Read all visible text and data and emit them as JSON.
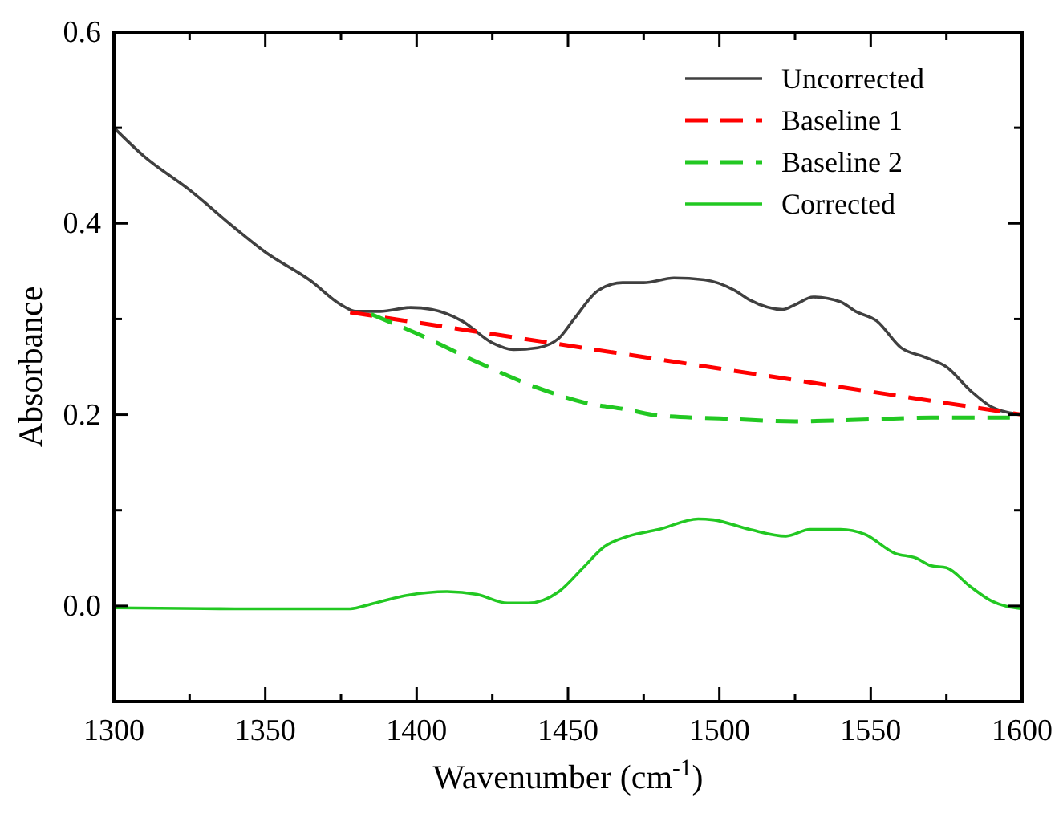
{
  "chart_data": {
    "type": "line",
    "xlabel": "Wavenumber (cm$^{-1}$)",
    "ylabel": "Absorbance",
    "xlim": [
      1300,
      1600
    ],
    "xticks": [
      1300,
      {
        "value": 1325,
        "label": null
      },
      1350,
      {
        "value": 1375,
        "label": null
      },
      1400,
      {
        "value": 1425,
        "label": null
      },
      1450,
      {
        "value": 1475,
        "label": null
      },
      1500,
      {
        "value": 1525,
        "label": null
      },
      1550,
      {
        "value": 1575,
        "label": null
      },
      1600
    ],
    "ylim": [
      -0.1,
      0.6
    ],
    "yticks": [
      {
        "value": 0,
        "label": "0.0"
      },
      {
        "value": 0.1,
        "label": null
      },
      0.2,
      {
        "value": 0.3,
        "label": null
      },
      0.4,
      {
        "value": 0.5,
        "label": null
      },
      0.6
    ],
    "grid": false,
    "legend": "top right",
    "series": [
      {
        "name": "Uncorrected",
        "color": "#404040",
        "line_style": "solid",
        "x": [
          1300,
          1310,
          1325,
          1340,
          1350,
          1365,
          1375,
          1380,
          1388,
          1398,
          1405,
          1415,
          1425,
          1432,
          1440,
          1447,
          1452,
          1460,
          1468,
          1475,
          1485,
          1495,
          1505,
          1510,
          1521,
          1525,
          1531,
          1540,
          1545,
          1552,
          1560,
          1568,
          1575,
          1583,
          1590,
          1600
        ],
        "values": [
          0.5,
          0.47,
          0.435,
          0.395,
          0.37,
          0.34,
          0.315,
          0.308,
          0.308,
          0.312,
          0.31,
          0.298,
          0.275,
          0.268,
          0.27,
          0.28,
          0.3,
          0.33,
          0.338,
          0.338,
          0.343,
          0.341,
          0.33,
          0.32,
          0.31,
          0.315,
          0.323,
          0.318,
          0.308,
          0.298,
          0.27,
          0.26,
          0.25,
          0.225,
          0.208,
          0.2
        ]
      },
      {
        "name": "Baseline 1",
        "color": "#ff0000",
        "line_style": "dashed",
        "x": [
          1378,
          1600
        ],
        "values": [
          0.307,
          0.2
        ]
      },
      {
        "name": "Baseline 2",
        "color": "#22c822",
        "line_style": "dashed",
        "x": [
          1385,
          1400,
          1420,
          1440,
          1455,
          1470,
          1480,
          1500,
          1525,
          1550,
          1570,
          1600
        ],
        "values": [
          0.305,
          0.285,
          0.255,
          0.228,
          0.213,
          0.205,
          0.199,
          0.196,
          0.193,
          0.195,
          0.197,
          0.197
        ]
      },
      {
        "name": "Corrected",
        "color": "#22c822",
        "line_style": "solid",
        "x": [
          1300,
          1340,
          1378,
          1385,
          1395,
          1410,
          1420,
          1430,
          1437,
          1447,
          1455,
          1462,
          1470,
          1480,
          1493,
          1498,
          1510,
          1522,
          1530,
          1540,
          1548,
          1558,
          1565,
          1570,
          1575,
          1583,
          1590,
          1600
        ],
        "values": [
          -0.002,
          -0.003,
          -0.003,
          0.002,
          0.01,
          0.015,
          0.012,
          0.003,
          0.003,
          0.015,
          0.04,
          0.062,
          0.073,
          0.08,
          0.091,
          0.09,
          0.08,
          0.073,
          0.08,
          0.08,
          0.075,
          0.055,
          0.05,
          0.042,
          0.04,
          0.02,
          0.005,
          -0.003
        ]
      }
    ]
  }
}
